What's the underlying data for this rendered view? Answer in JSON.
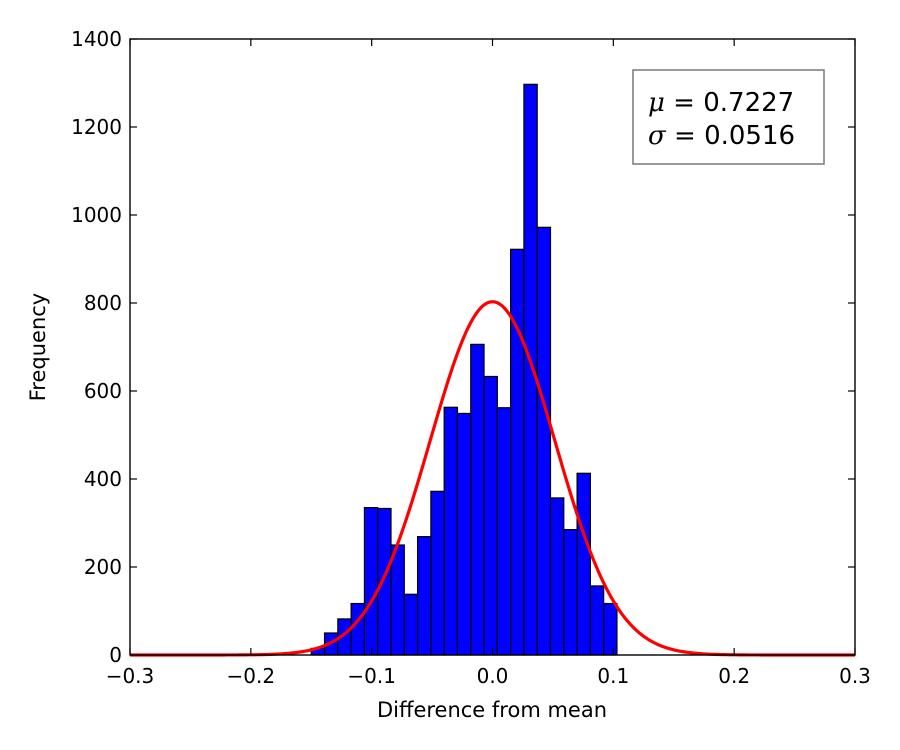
{
  "chart_data": {
    "type": "bar",
    "xlabel": "Difference from mean",
    "ylabel": "Frequency",
    "xlim": [
      -0.3,
      0.3
    ],
    "ylim": [
      0,
      1400
    ],
    "x_ticks": [
      "−0.3",
      "−0.2",
      "−0.1",
      "0.0",
      "0.1",
      "0.2",
      "0.3"
    ],
    "y_ticks": [
      "0",
      "200",
      "400",
      "600",
      "800",
      "1000",
      "1200",
      "1400"
    ],
    "grid": false,
    "bin_width": 0.011,
    "bins": [
      {
        "x0": -0.15,
        "value": 15
      },
      {
        "x0": -0.139,
        "value": 50
      },
      {
        "x0": -0.128,
        "value": 82
      },
      {
        "x0": -0.117,
        "value": 117
      },
      {
        "x0": -0.106,
        "value": 335
      },
      {
        "x0": -0.095,
        "value": 333
      },
      {
        "x0": -0.084,
        "value": 250
      },
      {
        "x0": -0.073,
        "value": 138
      },
      {
        "x0": -0.062,
        "value": 269
      },
      {
        "x0": -0.051,
        "value": 372
      },
      {
        "x0": -0.04,
        "value": 563
      },
      {
        "x0": -0.029,
        "value": 549
      },
      {
        "x0": -0.018,
        "value": 706
      },
      {
        "x0": -0.007,
        "value": 633
      },
      {
        "x0": 0.004,
        "value": 562
      },
      {
        "x0": 0.015,
        "value": 922
      },
      {
        "x0": 0.026,
        "value": 1297
      },
      {
        "x0": 0.037,
        "value": 972
      },
      {
        "x0": 0.048,
        "value": 357
      },
      {
        "x0": 0.059,
        "value": 285
      },
      {
        "x0": 0.07,
        "value": 413
      },
      {
        "x0": 0.081,
        "value": 157
      },
      {
        "x0": 0.092,
        "value": 117
      }
    ],
    "fit_curve": {
      "type": "normal",
      "mean": 0.0,
      "sd": 0.0516,
      "peak": 803,
      "color": "#ff0000"
    },
    "bar_color": "#0000ff",
    "legend": {
      "placement": "top-right",
      "mu_symbol": "μ",
      "mu_text": " = 0.7227",
      "sigma_symbol": "σ",
      "sigma_text": " = 0.0516"
    }
  }
}
